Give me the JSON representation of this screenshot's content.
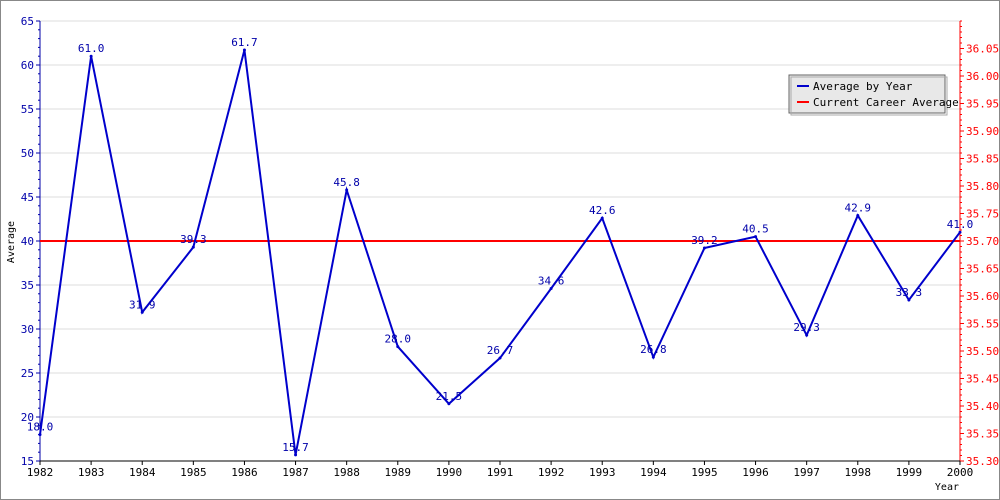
{
  "chart_data": {
    "type": "line",
    "title": "",
    "xlabel": "Year",
    "ylabel": "Average",
    "x": [
      1982,
      1983,
      1984,
      1985,
      1986,
      1987,
      1988,
      1989,
      1990,
      1991,
      1992,
      1993,
      1994,
      1995,
      1996,
      1997,
      1998,
      1999,
      2000
    ],
    "x_ticks": [
      "1982",
      "1983",
      "1984",
      "1985",
      "1986",
      "1987",
      "1988",
      "1989",
      "1990",
      "1991",
      "1992",
      "1993",
      "1994",
      "1995",
      "1996",
      "1997",
      "1998",
      "1999",
      "2000"
    ],
    "ylim": [
      15,
      65
    ],
    "y_ticks": [
      "15",
      "20",
      "25",
      "30",
      "35",
      "40",
      "45",
      "50",
      "55",
      "60",
      "65"
    ],
    "y2lim": [
      35.3,
      36.1
    ],
    "y2_ticks": [
      "35.30",
      "35.35",
      "35.40",
      "35.45",
      "35.50",
      "35.55",
      "35.60",
      "35.65",
      "35.70",
      "35.75",
      "35.80",
      "35.85",
      "35.90",
      "35.95",
      "36.00",
      "36.05"
    ],
    "grid": true,
    "legend_position": "top-right",
    "series": [
      {
        "name": "Average by Year",
        "color": "#0000cc",
        "values": [
          18.0,
          61.0,
          31.9,
          39.3,
          61.7,
          15.7,
          45.8,
          28.0,
          21.5,
          26.7,
          34.6,
          42.6,
          26.8,
          39.2,
          40.5,
          29.3,
          42.9,
          33.3,
          41.0
        ],
        "labels": [
          "18.0",
          "61.0",
          "31.9",
          "39.3",
          "61.7",
          "15.7",
          "45.8",
          "28.0",
          "21.5",
          "26.7",
          "34.6",
          "42.6",
          "26.8",
          "39.2",
          "40.5",
          "29.3",
          "42.9",
          "33.3",
          "41.0"
        ]
      },
      {
        "name": "Current Career Average",
        "color": "#ff0000",
        "axis": "right",
        "value": 35.7
      }
    ]
  }
}
